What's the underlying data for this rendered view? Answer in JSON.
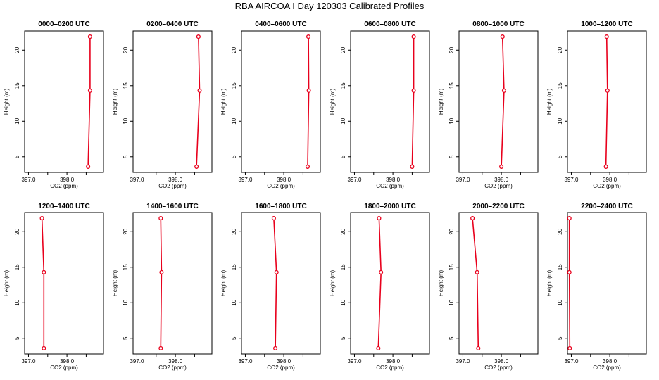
{
  "title": "RBA AIRCOA I  Day 120303  Calibrated Profiles",
  "colors": {
    "line": "#e8001c",
    "point": "#e8001c",
    "axis": "#000000"
  },
  "chart_data": {
    "type": "line",
    "layout": "2 rows x 6 columns small multiples",
    "xlabel": "CO2 (ppm)",
    "ylabel": "Height (m)",
    "xlim": [
      396.9,
      398.95
    ],
    "ylim": [
      2.8,
      22.7
    ],
    "xticks": [
      397.0,
      397.5,
      398.0,
      398.5
    ],
    "xtick_labels": [
      "397.0",
      "",
      "398.0",
      ""
    ],
    "yticks": [
      5,
      10,
      15,
      20
    ],
    "yticks_labels": [
      "5",
      "10",
      "15",
      "20"
    ],
    "grid": false,
    "panels": [
      {
        "title": "0000–0200 UTC",
        "points": [
          {
            "co2": 398.55,
            "height": 3.6
          },
          {
            "co2": 398.6,
            "height": 14.3
          },
          {
            "co2": 398.6,
            "height": 21.9
          }
        ]
      },
      {
        "title": "0200–0400 UTC",
        "points": [
          {
            "co2": 398.55,
            "height": 3.6
          },
          {
            "co2": 398.63,
            "height": 14.3
          },
          {
            "co2": 398.6,
            "height": 21.9
          }
        ]
      },
      {
        "title": "0400–0600 UTC",
        "points": [
          {
            "co2": 398.62,
            "height": 3.6
          },
          {
            "co2": 398.65,
            "height": 14.3
          },
          {
            "co2": 398.64,
            "height": 21.9
          }
        ]
      },
      {
        "title": "0600–0800 UTC",
        "points": [
          {
            "co2": 398.5,
            "height": 3.6
          },
          {
            "co2": 398.54,
            "height": 14.3
          },
          {
            "co2": 398.54,
            "height": 21.9
          }
        ]
      },
      {
        "title": "0800–1000 UTC",
        "points": [
          {
            "co2": 398.0,
            "height": 3.6
          },
          {
            "co2": 398.07,
            "height": 14.3
          },
          {
            "co2": 398.03,
            "height": 21.9
          }
        ]
      },
      {
        "title": "1000–1200 UTC",
        "points": [
          {
            "co2": 397.9,
            "height": 3.6
          },
          {
            "co2": 397.94,
            "height": 14.3
          },
          {
            "co2": 397.92,
            "height": 21.9
          }
        ]
      },
      {
        "title": "1200–1400 UTC",
        "points": [
          {
            "co2": 397.4,
            "height": 3.6
          },
          {
            "co2": 397.4,
            "height": 14.3
          },
          {
            "co2": 397.35,
            "height": 21.9
          }
        ]
      },
      {
        "title": "1400–1600 UTC",
        "points": [
          {
            "co2": 397.62,
            "height": 3.6
          },
          {
            "co2": 397.64,
            "height": 14.3
          },
          {
            "co2": 397.62,
            "height": 21.9
          }
        ]
      },
      {
        "title": "1600–1800 UTC",
        "points": [
          {
            "co2": 397.78,
            "height": 3.6
          },
          {
            "co2": 397.81,
            "height": 14.3
          },
          {
            "co2": 397.74,
            "height": 21.9
          }
        ]
      },
      {
        "title": "1800–2000 UTC",
        "points": [
          {
            "co2": 397.62,
            "height": 3.6
          },
          {
            "co2": 397.69,
            "height": 14.3
          },
          {
            "co2": 397.64,
            "height": 21.9
          }
        ]
      },
      {
        "title": "2000–2200 UTC",
        "points": [
          {
            "co2": 397.4,
            "height": 3.6
          },
          {
            "co2": 397.37,
            "height": 14.3
          },
          {
            "co2": 397.25,
            "height": 21.9
          }
        ]
      },
      {
        "title": "2200–2400 UTC",
        "points": [
          {
            "co2": 396.96,
            "height": 3.6
          },
          {
            "co2": 396.95,
            "height": 14.3
          },
          {
            "co2": 396.95,
            "height": 21.9
          }
        ]
      }
    ]
  }
}
